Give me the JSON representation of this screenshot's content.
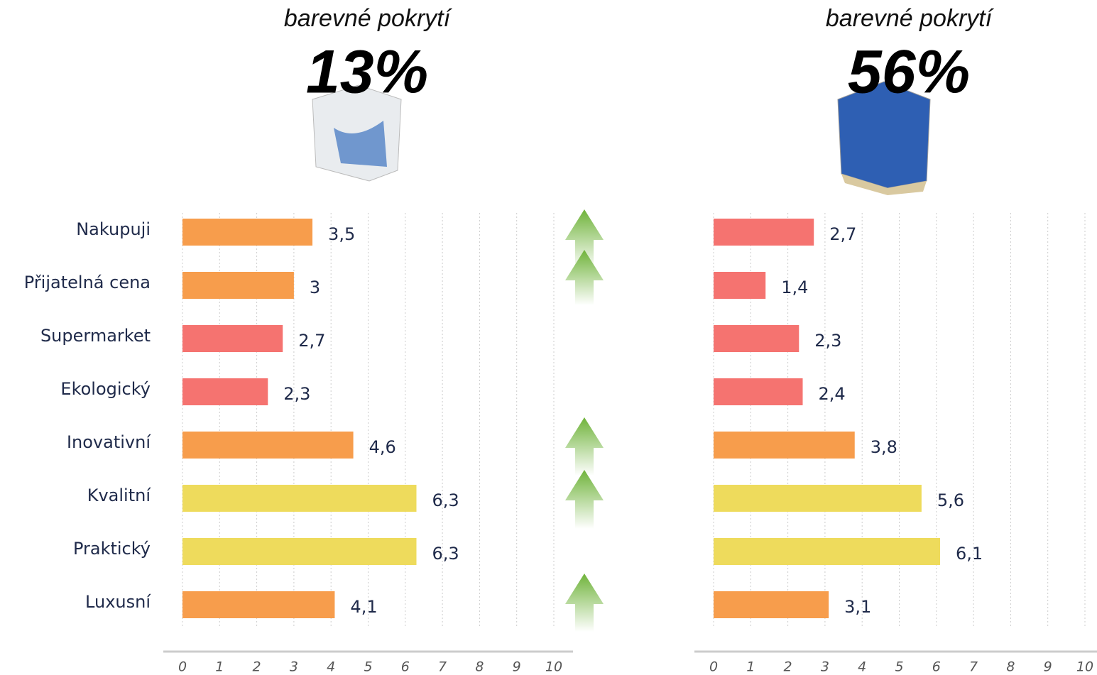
{
  "chart_data": [
    {
      "type": "bar",
      "orientation": "horizontal",
      "subtitle": "barevné pokrytí",
      "title": "13%",
      "categories": [
        "Nakupuji",
        "Přijatelná cena",
        "Supermarket",
        "Ekologický",
        "Inovativní",
        "Kvalitní",
        "Praktický",
        "Luxusní"
      ],
      "values": [
        3.5,
        3,
        2.7,
        2.3,
        4.6,
        6.3,
        6.3,
        4.1
      ],
      "value_labels": [
        "3,5",
        "3",
        "2,7",
        "2,3",
        "4,6",
        "6,3",
        "6,3",
        "4,1"
      ],
      "colors": [
        "#f79d4c",
        "#f79d4c",
        "#f57370",
        "#f57370",
        "#f79d4c",
        "#eedb5c",
        "#eedb5c",
        "#f79d4c"
      ],
      "xlim": [
        0,
        10
      ],
      "xticks": [
        0,
        1,
        2,
        3,
        4,
        5,
        6,
        7,
        8,
        9,
        10
      ],
      "grid": true
    },
    {
      "type": "bar",
      "orientation": "horizontal",
      "subtitle": "barevné pokrytí",
      "title": "56%",
      "values": [
        2.7,
        1.4,
        2.3,
        2.4,
        3.8,
        5.6,
        6.1,
        3.1
      ],
      "value_labels": [
        "2,7",
        "1,4",
        "2,3",
        "2,4",
        "3,8",
        "5,6",
        "6,1",
        "3,1"
      ],
      "colors": [
        "#f57370",
        "#f57370",
        "#f57370",
        "#f57370",
        "#f79d4c",
        "#eedb5c",
        "#eedb5c",
        "#f79d4c"
      ],
      "xlim": [
        0,
        10
      ],
      "xticks": [
        0,
        1,
        2,
        3,
        4,
        5,
        6,
        7,
        8,
        9,
        10
      ],
      "grid": true
    }
  ]
}
